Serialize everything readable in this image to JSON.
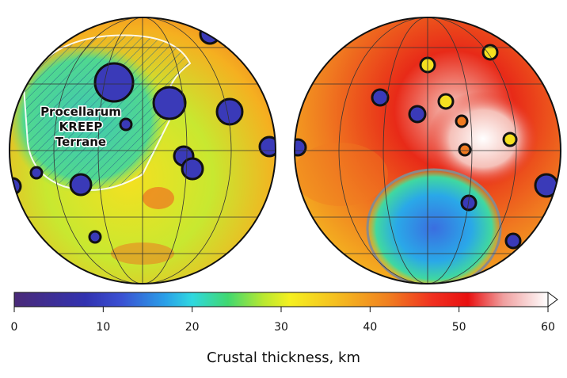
{
  "map": {
    "annotation": [
      "Procellarum",
      "KREEP",
      "Terrane"
    ]
  },
  "colorbar": {
    "label": "Crustal thickness, km",
    "range": [
      0,
      60
    ],
    "ticks": [
      0,
      10,
      20,
      30,
      40,
      50,
      60
    ],
    "stops": [
      {
        "value": 0,
        "color": "#4a2a78"
      },
      {
        "value": 8,
        "color": "#3232b0"
      },
      {
        "value": 12,
        "color": "#3a50d2"
      },
      {
        "value": 17,
        "color": "#2aa0e8"
      },
      {
        "value": 20,
        "color": "#30d8e0"
      },
      {
        "value": 24,
        "color": "#40d870"
      },
      {
        "value": 28,
        "color": "#b8e830"
      },
      {
        "value": 31,
        "color": "#f5f020"
      },
      {
        "value": 36,
        "color": "#f5c020"
      },
      {
        "value": 42,
        "color": "#f08020"
      },
      {
        "value": 47,
        "color": "#f03020"
      },
      {
        "value": 51,
        "color": "#e81010"
      },
      {
        "value": 55,
        "color": "#f0a0a0"
      },
      {
        "value": 60,
        "color": "#ffffff"
      }
    ]
  }
}
